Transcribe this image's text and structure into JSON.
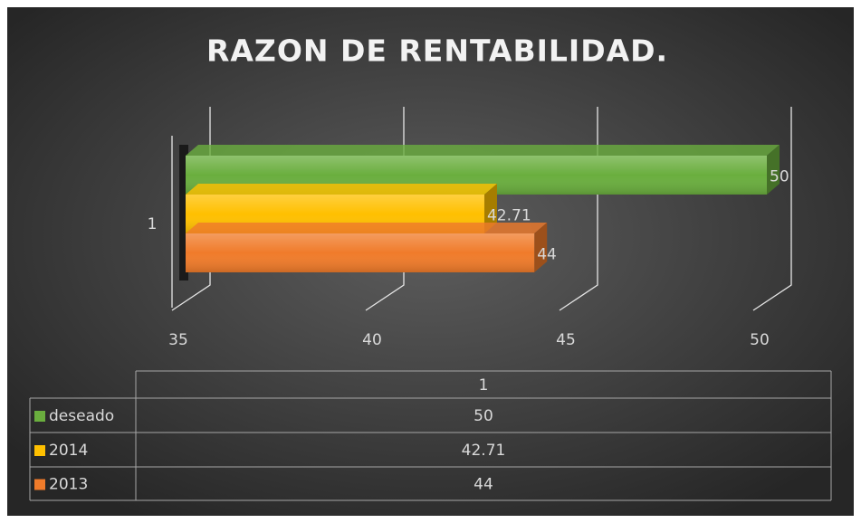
{
  "chart_data": {
    "type": "bar3d_horizontal",
    "title": "RAZON DE RENTABILIDAD.",
    "categories": [
      "1"
    ],
    "series": [
      {
        "name": "deseado",
        "color": "#6aae3e",
        "values": [
          50
        ]
      },
      {
        "name": "2014",
        "color": "#ffc000",
        "values": [
          42.71
        ]
      },
      {
        "name": "2013",
        "color": "#f07b2a",
        "values": [
          44
        ]
      }
    ],
    "xlim": [
      35,
      50
    ],
    "xticks": [
      35,
      40,
      45,
      50
    ],
    "grid": true,
    "data_table": true
  }
}
